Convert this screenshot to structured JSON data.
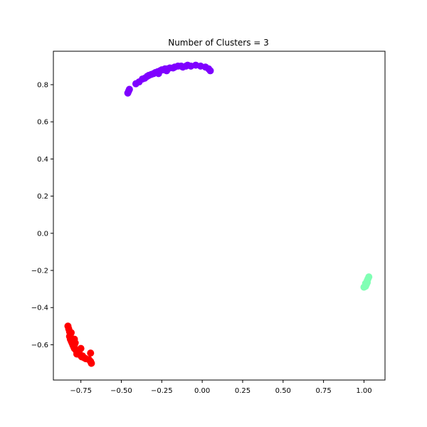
{
  "chart_data": {
    "type": "scatter",
    "title": "Number of Clusters = 3",
    "xlabel": "",
    "ylabel": "",
    "xlim": [
      -0.92,
      1.13
    ],
    "ylim": [
      -0.79,
      0.98
    ],
    "grid": false,
    "x_ticks": [
      -0.75,
      -0.5,
      -0.25,
      0.0,
      0.25,
      0.5,
      0.75,
      1.0
    ],
    "x_tick_labels": [
      "−0.75",
      "−0.50",
      "−0.25",
      "0.00",
      "0.25",
      "0.50",
      "0.75",
      "1.00"
    ],
    "y_ticks": [
      -0.6,
      -0.4,
      -0.2,
      0.0,
      0.2,
      0.4,
      0.6,
      0.8
    ],
    "y_tick_labels": [
      "−0.6",
      "−0.4",
      "−0.2",
      "0.0",
      "0.2",
      "0.4",
      "0.6",
      "0.8"
    ],
    "series": [
      {
        "color": "#7f00ff",
        "points": [
          [
            -0.46,
            0.755
          ],
          [
            -0.455,
            0.765
          ],
          [
            -0.45,
            0.775
          ],
          [
            -0.41,
            0.805
          ],
          [
            -0.39,
            0.815
          ],
          [
            -0.37,
            0.83
          ],
          [
            -0.355,
            0.835
          ],
          [
            -0.34,
            0.845
          ],
          [
            -0.33,
            0.85
          ],
          [
            -0.315,
            0.855
          ],
          [
            -0.3,
            0.86
          ],
          [
            -0.29,
            0.865
          ],
          [
            -0.275,
            0.87
          ],
          [
            -0.26,
            0.875
          ],
          [
            -0.25,
            0.88
          ],
          [
            -0.24,
            0.88
          ],
          [
            -0.23,
            0.885
          ],
          [
            -0.215,
            0.885
          ],
          [
            -0.2,
            0.89
          ],
          [
            -0.18,
            0.89
          ],
          [
            -0.17,
            0.895
          ],
          [
            -0.15,
            0.9
          ],
          [
            -0.13,
            0.9
          ],
          [
            -0.12,
            0.895
          ],
          [
            -0.1,
            0.9
          ],
          [
            -0.09,
            0.905
          ],
          [
            -0.07,
            0.9
          ],
          [
            -0.04,
            0.905
          ],
          [
            -0.01,
            0.9
          ],
          [
            0.02,
            0.895
          ],
          [
            0.04,
            0.885
          ],
          [
            0.05,
            0.875
          ],
          [
            -0.27,
            0.86
          ],
          [
            -0.22,
            0.875
          ]
        ]
      },
      {
        "color": "#80ffb4",
        "points": [
          [
            1.0,
            -0.29
          ],
          [
            1.01,
            -0.285
          ],
          [
            1.015,
            -0.275
          ],
          [
            1.02,
            -0.265
          ],
          [
            1.02,
            -0.255
          ],
          [
            1.025,
            -0.245
          ],
          [
            1.03,
            -0.235
          ],
          [
            1.01,
            -0.27
          ]
        ]
      },
      {
        "color": "#ff0000",
        "points": [
          [
            -0.83,
            -0.5
          ],
          [
            -0.825,
            -0.515
          ],
          [
            -0.82,
            -0.53
          ],
          [
            -0.815,
            -0.545
          ],
          [
            -0.81,
            -0.535
          ],
          [
            -0.82,
            -0.555
          ],
          [
            -0.815,
            -0.57
          ],
          [
            -0.81,
            -0.58
          ],
          [
            -0.8,
            -0.575
          ],
          [
            -0.79,
            -0.57
          ],
          [
            -0.805,
            -0.59
          ],
          [
            -0.8,
            -0.6
          ],
          [
            -0.795,
            -0.61
          ],
          [
            -0.79,
            -0.6
          ],
          [
            -0.785,
            -0.59
          ],
          [
            -0.79,
            -0.62
          ],
          [
            -0.78,
            -0.63
          ],
          [
            -0.77,
            -0.64
          ],
          [
            -0.76,
            -0.645
          ],
          [
            -0.75,
            -0.62
          ],
          [
            -0.755,
            -0.655
          ],
          [
            -0.74,
            -0.66
          ],
          [
            -0.73,
            -0.67
          ],
          [
            -0.72,
            -0.675
          ],
          [
            -0.7,
            -0.68
          ],
          [
            -0.69,
            -0.645
          ],
          [
            -0.69,
            -0.69
          ],
          [
            -0.685,
            -0.7
          ],
          [
            -0.775,
            -0.65
          ],
          [
            -0.745,
            -0.665
          ]
        ]
      }
    ]
  }
}
